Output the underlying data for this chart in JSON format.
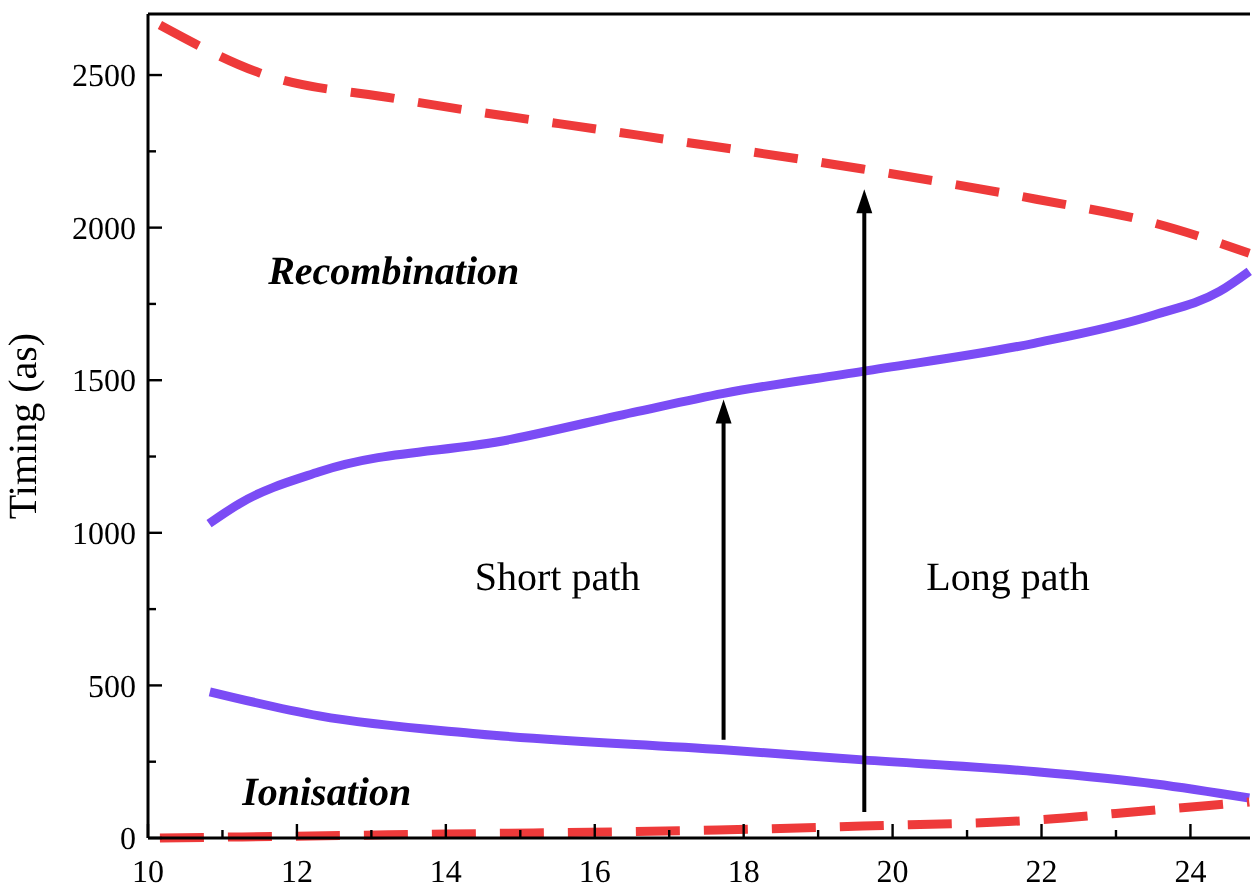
{
  "chart_data": {
    "type": "line",
    "ylabel": "Timing (as)",
    "xlim": [
      10,
      24.8
    ],
    "ylim": [
      0,
      2700
    ],
    "xticks": [
      10,
      {
        "value": 11,
        "label": null
      },
      12,
      {
        "value": 13,
        "label": null
      },
      14,
      {
        "value": 15,
        "label": null
      },
      16,
      {
        "value": 17,
        "label": null
      },
      18,
      {
        "value": 19,
        "label": null
      },
      20,
      {
        "value": 21,
        "label": null
      },
      22,
      {
        "value": 23,
        "label": null
      },
      24
    ],
    "yticks": [
      0,
      {
        "value": 250,
        "label": null
      },
      500,
      {
        "value": 750,
        "label": null
      },
      1000,
      {
        "value": 1250,
        "label": null
      },
      1500,
      {
        "value": 1750,
        "label": null
      },
      2000,
      {
        "value": 2250,
        "label": null
      },
      2500
    ],
    "grid": false,
    "marker": "none",
    "series": [
      {
        "color": "#7b4cf5",
        "line_style": "solid",
        "x": [
          10.82,
          11.23,
          12.3,
          14.87,
          16.58,
          17.73,
          19.6,
          21.9,
          23.5,
          24.39,
          24.79
        ],
        "values": [
          1030,
          1096,
          1200,
          1306,
          1398,
          1457,
          1529,
          1621,
          1713,
          1791,
          1857
        ]
      },
      {
        "color": "#7b4cf5",
        "line_style": "solid",
        "x": [
          10.83,
          12.3,
          14.44,
          17.73,
          19.6,
          21.93,
          23.53,
          24.79
        ],
        "values": [
          479,
          400,
          341,
          289,
          256,
          217,
          177,
          131
        ]
      },
      {
        "color": "#ee3a3a",
        "line_style": "dashed",
        "x": [
          10.16,
          11.5,
          13.37,
          16.58,
          19.6,
          21.93,
          23.53,
          24.79
        ],
        "values": [
          2664,
          2507,
          2421,
          2303,
          2192,
          2093,
          2014,
          1916
        ]
      },
      {
        "color": "#ee3a3a",
        "line_style": "dashed",
        "x": [
          10.16,
          14.0,
          17.65,
          19.6,
          21.93,
          23.53,
          24.79
        ],
        "values": [
          0,
          13,
          26,
          39,
          59,
          92,
          118
        ]
      }
    ],
    "annotations": [
      "Recombination",
      "Ionisation",
      "Short path",
      "Long path"
    ]
  }
}
